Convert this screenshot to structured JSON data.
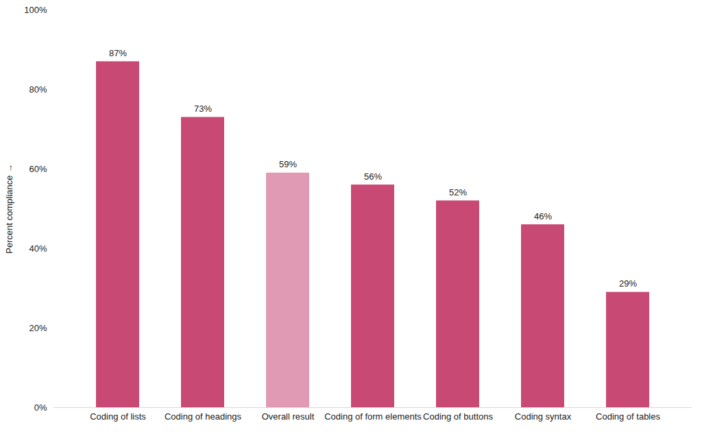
{
  "chart_data": {
    "type": "bar",
    "categories": [
      "Coding of lists",
      "Coding of headings",
      "Overall result",
      "Coding of form elements",
      "Coding of buttons",
      "Coding syntax",
      "Coding of tables"
    ],
    "values": [
      87,
      73,
      59,
      56,
      52,
      46,
      29
    ],
    "value_labels": [
      "87%",
      "73%",
      "59%",
      "56%",
      "52%",
      "46%",
      "29%"
    ],
    "colors": [
      "#c84a74",
      "#c84a74",
      "#e19ab3",
      "#c84a74",
      "#c84a74",
      "#c84a74",
      "#c84a74"
    ],
    "y_label": "Percent compliance",
    "ylim": [
      0,
      100
    ],
    "yticks": [
      {
        "value": 0,
        "label": "0%"
      },
      {
        "value": 20,
        "label": "20%"
      },
      {
        "value": 40,
        "label": "40%"
      },
      {
        "value": 60,
        "label": "60%"
      },
      {
        "value": 80,
        "label": "80%"
      },
      {
        "value": 100,
        "label": "100%"
      }
    ],
    "grid": false,
    "data_labels": true
  }
}
